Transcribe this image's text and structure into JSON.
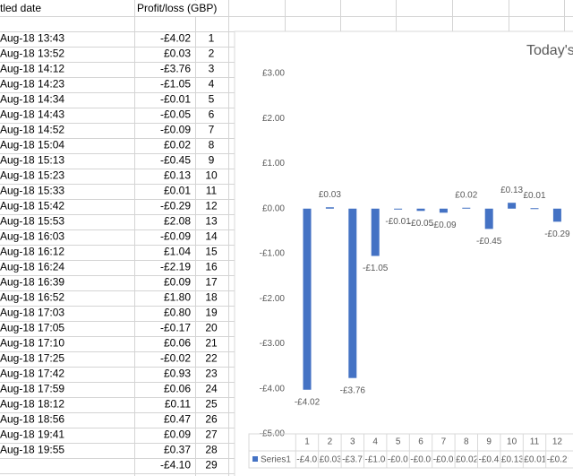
{
  "sheet": {
    "header": [
      "tled date",
      "Profit/loss (GBP)"
    ],
    "rows": [
      [
        "Aug-18 13:43",
        "-£4.02",
        "1"
      ],
      [
        "Aug-18 13:52",
        "£0.03",
        "2"
      ],
      [
        "Aug-18 14:12",
        "-£3.76",
        "3"
      ],
      [
        "Aug-18 14:23",
        "-£1.05",
        "4"
      ],
      [
        "Aug-18 14:34",
        "-£0.01",
        "5"
      ],
      [
        "Aug-18 14:43",
        "-£0.05",
        "6"
      ],
      [
        "Aug-18 14:52",
        "-£0.09",
        "7"
      ],
      [
        "Aug-18 15:04",
        "£0.02",
        "8"
      ],
      [
        "Aug-18 15:13",
        "-£0.45",
        "9"
      ],
      [
        "Aug-18 15:23",
        "£0.13",
        "10"
      ],
      [
        "Aug-18 15:33",
        "£0.01",
        "11"
      ],
      [
        "Aug-18 15:42",
        "-£0.29",
        "12"
      ],
      [
        "Aug-18 15:53",
        "£2.08",
        "13"
      ],
      [
        "Aug-18 16:03",
        "-£0.09",
        "14"
      ],
      [
        "Aug-18 16:12",
        "£1.04",
        "15"
      ],
      [
        "Aug-18 16:24",
        "-£2.19",
        "16"
      ],
      [
        "Aug-18 16:39",
        "£0.09",
        "17"
      ],
      [
        "Aug-18 16:52",
        "£1.80",
        "18"
      ],
      [
        "Aug-18 17:03",
        "£0.80",
        "19"
      ],
      [
        "Aug-18 17:05",
        "-£0.17",
        "20"
      ],
      [
        "Aug-18 17:10",
        "£0.06",
        "21"
      ],
      [
        "Aug-18 17:25",
        "-£0.02",
        "22"
      ],
      [
        "Aug-18 17:42",
        "£0.93",
        "23"
      ],
      [
        "Aug-18 17:59",
        "£0.06",
        "24"
      ],
      [
        "Aug-18 18:12",
        "£0.11",
        "25"
      ],
      [
        "Aug-18 18:56",
        "£0.47",
        "26"
      ],
      [
        "Aug-18 19:41",
        "£0.09",
        "27"
      ],
      [
        "Aug-18 19:55",
        "£0.37",
        "28"
      ],
      [
        null,
        "-£4.10",
        "29"
      ]
    ]
  },
  "chart_data": {
    "type": "bar",
    "title": "Today's",
    "categories": [
      "1",
      "2",
      "3",
      "4",
      "5",
      "6",
      "7",
      "8",
      "9",
      "10",
      "11",
      "12"
    ],
    "series": [
      {
        "name": "Series1",
        "color": "#4472c4",
        "values": [
          -4.02,
          0.03,
          -3.76,
          -1.05,
          -0.01,
          -0.05,
          -0.09,
          0.02,
          -0.45,
          0.13,
          0.01,
          -0.29
        ],
        "value_labels": [
          "-£4.02",
          "£0.03",
          "-£3.76",
          "-£1.05",
          "-£0.01",
          "-£0.05",
          "-£0.09",
          "£0.02",
          "-£0.45",
          "£0.13",
          "£0.01",
          "-£0.29"
        ]
      }
    ],
    "ylim": [
      -5,
      3
    ],
    "yticks": [
      {
        "value": 3,
        "label": "£3.00"
      },
      {
        "value": 2,
        "label": "£2.00"
      },
      {
        "value": 1,
        "label": "£1.00"
      },
      {
        "value": 0,
        "label": "£0.00"
      },
      {
        "value": -1,
        "label": "-£1.00"
      },
      {
        "value": -2,
        "label": "-£2.00"
      },
      {
        "value": -3,
        "label": "-£3.00"
      },
      {
        "value": -4,
        "label": "-£4.00"
      },
      {
        "value": -5,
        "label": "-£5.00"
      }
    ],
    "grid": false
  }
}
